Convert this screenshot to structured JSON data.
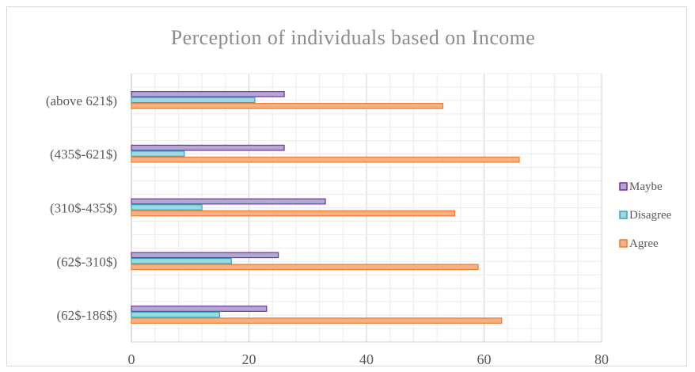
{
  "chart_data": {
    "type": "bar",
    "orientation": "horizontal",
    "title": "Perception of individuals based on Income",
    "xlabel": "",
    "ylabel": "",
    "xlim": [
      0,
      80
    ],
    "x_ticks": [
      0,
      20,
      40,
      60,
      80
    ],
    "grid": true,
    "legend_position": "right",
    "categories": [
      "(62$-186$)",
      "(62$-310$)",
      "(310$-435$)",
      "(435$-621$)",
      "(above 621$)"
    ],
    "series": [
      {
        "name": "Agree",
        "color": "#f4b183",
        "stroke": "#ed7d31",
        "values": [
          63,
          59,
          55,
          66,
          53
        ]
      },
      {
        "name": "Disagree",
        "color": "#9dd9e3",
        "stroke": "#31a7bb",
        "values": [
          15,
          17,
          12,
          9,
          21
        ]
      },
      {
        "name": "Maybe",
        "color": "#b4a7d6",
        "stroke": "#7030a0",
        "values": [
          23,
          25,
          33,
          26,
          26
        ]
      }
    ]
  }
}
